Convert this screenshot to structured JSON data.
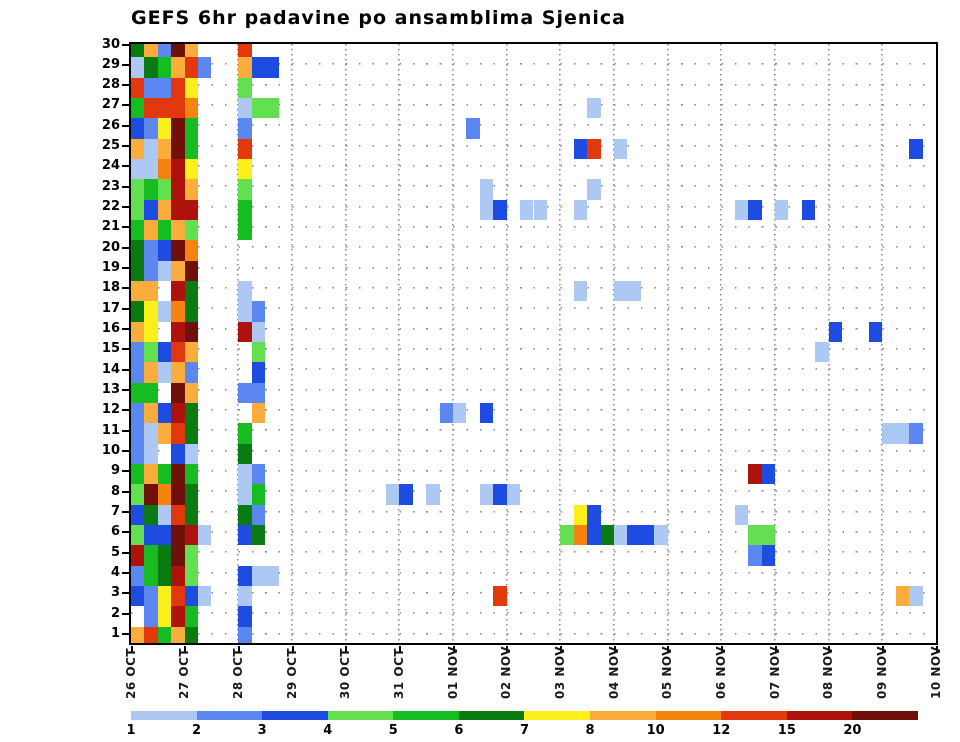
{
  "title": "GEFS 6hr padavine po ansamblima Sjenica",
  "chart_data": {
    "type": "heatmap",
    "title": "GEFS 6hr padavine po ansamblima Sjenica",
    "x_tick_labels": [
      "26 OCT",
      "27 OCT",
      "28 OCT",
      "29 OCT",
      "30 OCT",
      "31 OCT",
      "01 NOV",
      "02 NOV",
      "03 NOV",
      "04 NOV",
      "05 NOV",
      "06 NOV",
      "07 NOV",
      "08 NOV",
      "09 NOV",
      "10 NOV"
    ],
    "y_tick_labels": [
      30,
      29,
      28,
      27,
      26,
      25,
      24,
      23,
      22,
      21,
      20,
      19,
      18,
      17,
      16,
      15,
      14,
      13,
      12,
      11,
      10,
      9,
      8,
      7,
      6,
      5,
      4,
      3,
      2,
      1
    ],
    "columns_per_day": 4,
    "n_columns": 60,
    "n_rows": 30,
    "grid": true,
    "legend": {
      "position": "bottom",
      "values": [
        1,
        2,
        3,
        4,
        5,
        6,
        7,
        8,
        10,
        12,
        15,
        20
      ],
      "colors": [
        "#ADC9F3",
        "#5C87F0",
        "#1E4CE0",
        "#64DF52",
        "#16BC22",
        "#0A7A12",
        "#FBEF1C",
        "#FAAD3D",
        "#F5830F",
        "#E1380E",
        "#AD120C",
        "#70100B"
      ]
    },
    "color_key_hex": {
      "P": "#ADC9F3",
      "C": "#5C87F0",
      "B": "#1E4CE0",
      "LG": "#64DF52",
      "G": "#16BC22",
      "DG": "#0A7A12",
      "Y": "#FBEF1C",
      "O": "#FAAD3D",
      "DO": "#F5830F",
      "R": "#E1380E",
      "DR": "#AD120C",
      "M": "#70100B"
    },
    "color_key_range": {
      "P": "1-2",
      "C": "2-3",
      "B": "3-4",
      "LG": "4-5",
      "G": "5-6",
      "DG": "6-7",
      "Y": "7-8",
      "O": "8-10",
      "DO": "10-12",
      "R": "12-15",
      "DR": "15-20",
      "M": "20+"
    },
    "cells": {
      "30": [
        [
          1,
          "DG"
        ],
        [
          2,
          "O"
        ],
        [
          3,
          "C"
        ],
        [
          4,
          "M"
        ],
        [
          5,
          "O"
        ],
        [
          9,
          "R"
        ]
      ],
      "29": [
        [
          1,
          "P"
        ],
        [
          2,
          "DG"
        ],
        [
          3,
          "G"
        ],
        [
          4,
          "O"
        ],
        [
          5,
          "R"
        ],
        [
          6,
          "C"
        ],
        [
          9,
          "O"
        ],
        [
          10,
          "B"
        ],
        [
          11,
          "B"
        ]
      ],
      "28": [
        [
          1,
          "R"
        ],
        [
          2,
          "C"
        ],
        [
          3,
          "C"
        ],
        [
          4,
          "R"
        ],
        [
          5,
          "Y"
        ],
        [
          9,
          "LG"
        ]
      ],
      "27": [
        [
          1,
          "G"
        ],
        [
          2,
          "R"
        ],
        [
          3,
          "R"
        ],
        [
          4,
          "R"
        ],
        [
          5,
          "DO"
        ],
        [
          9,
          "P"
        ],
        [
          10,
          "LG"
        ],
        [
          11,
          "LG"
        ],
        [
          35,
          "P"
        ]
      ],
      "26": [
        [
          1,
          "B"
        ],
        [
          2,
          "C"
        ],
        [
          3,
          "Y"
        ],
        [
          4,
          "M"
        ],
        [
          5,
          "G"
        ],
        [
          9,
          "C"
        ],
        [
          26,
          "C"
        ]
      ],
      "25": [
        [
          1,
          "O"
        ],
        [
          2,
          "P"
        ],
        [
          3,
          "O"
        ],
        [
          4,
          "M"
        ],
        [
          5,
          "G"
        ],
        [
          9,
          "R"
        ],
        [
          34,
          "B"
        ],
        [
          35,
          "R"
        ],
        [
          37,
          "P"
        ],
        [
          59,
          "B"
        ]
      ],
      "24": [
        [
          1,
          "P"
        ],
        [
          2,
          "P"
        ],
        [
          3,
          "DO"
        ],
        [
          4,
          "DR"
        ],
        [
          5,
          "Y"
        ],
        [
          9,
          "Y"
        ]
      ],
      "23": [
        [
          1,
          "LG"
        ],
        [
          2,
          "G"
        ],
        [
          3,
          "LG"
        ],
        [
          4,
          "DR"
        ],
        [
          5,
          "O"
        ],
        [
          9,
          "LG"
        ],
        [
          27,
          "P"
        ],
        [
          35,
          "P"
        ]
      ],
      "22": [
        [
          1,
          "LG"
        ],
        [
          2,
          "B"
        ],
        [
          3,
          "O"
        ],
        [
          4,
          "DR"
        ],
        [
          5,
          "DR"
        ],
        [
          9,
          "G"
        ],
        [
          27,
          "P"
        ],
        [
          28,
          "B"
        ],
        [
          30,
          "P"
        ],
        [
          31,
          "P"
        ],
        [
          34,
          "P"
        ],
        [
          46,
          "P"
        ],
        [
          47,
          "B"
        ],
        [
          49,
          "P"
        ],
        [
          51,
          "B"
        ]
      ],
      "21": [
        [
          1,
          "G"
        ],
        [
          2,
          "O"
        ],
        [
          3,
          "G"
        ],
        [
          4,
          "O"
        ],
        [
          5,
          "LG"
        ],
        [
          9,
          "G"
        ]
      ],
      "20": [
        [
          1,
          "DG"
        ],
        [
          2,
          "C"
        ],
        [
          3,
          "B"
        ],
        [
          4,
          "M"
        ],
        [
          5,
          "DO"
        ]
      ],
      "19": [
        [
          1,
          "DG"
        ],
        [
          2,
          "C"
        ],
        [
          3,
          "P"
        ],
        [
          4,
          "O"
        ],
        [
          5,
          "M"
        ]
      ],
      "18": [
        [
          1,
          "O"
        ],
        [
          2,
          "O"
        ],
        [
          4,
          "DR"
        ],
        [
          5,
          "DG"
        ],
        [
          9,
          "P"
        ],
        [
          34,
          "P"
        ],
        [
          37,
          "P"
        ],
        [
          38,
          "P"
        ]
      ],
      "17": [
        [
          1,
          "DG"
        ],
        [
          2,
          "Y"
        ],
        [
          3,
          "P"
        ],
        [
          4,
          "DO"
        ],
        [
          5,
          "DG"
        ],
        [
          9,
          "P"
        ],
        [
          10,
          "C"
        ]
      ],
      "16": [
        [
          1,
          "O"
        ],
        [
          2,
          "Y"
        ],
        [
          4,
          "DR"
        ],
        [
          5,
          "M"
        ],
        [
          9,
          "DR"
        ],
        [
          10,
          "P"
        ],
        [
          53,
          "B"
        ],
        [
          56,
          "B"
        ]
      ],
      "15": [
        [
          1,
          "C"
        ],
        [
          2,
          "LG"
        ],
        [
          3,
          "B"
        ],
        [
          4,
          "R"
        ],
        [
          5,
          "O"
        ],
        [
          10,
          "LG"
        ],
        [
          52,
          "P"
        ]
      ],
      "14": [
        [
          1,
          "C"
        ],
        [
          2,
          "O"
        ],
        [
          3,
          "P"
        ],
        [
          4,
          "O"
        ],
        [
          5,
          "C"
        ],
        [
          10,
          "B"
        ]
      ],
      "13": [
        [
          1,
          "G"
        ],
        [
          2,
          "G"
        ],
        [
          4,
          "M"
        ],
        [
          5,
          "O"
        ],
        [
          9,
          "C"
        ],
        [
          10,
          "C"
        ]
      ],
      "12": [
        [
          1,
          "C"
        ],
        [
          2,
          "O"
        ],
        [
          3,
          "B"
        ],
        [
          4,
          "DR"
        ],
        [
          5,
          "DG"
        ],
        [
          10,
          "O"
        ],
        [
          24,
          "C"
        ],
        [
          25,
          "P"
        ],
        [
          27,
          "B"
        ]
      ],
      "11": [
        [
          1,
          "C"
        ],
        [
          2,
          "P"
        ],
        [
          3,
          "O"
        ],
        [
          4,
          "R"
        ],
        [
          5,
          "DG"
        ],
        [
          9,
          "G"
        ],
        [
          57,
          "P"
        ],
        [
          58,
          "P"
        ],
        [
          59,
          "C"
        ]
      ],
      "10": [
        [
          1,
          "C"
        ],
        [
          2,
          "P"
        ],
        [
          4,
          "B"
        ],
        [
          5,
          "P"
        ],
        [
          9,
          "DG"
        ]
      ],
      "9": [
        [
          1,
          "G"
        ],
        [
          2,
          "O"
        ],
        [
          3,
          "G"
        ],
        [
          4,
          "M"
        ],
        [
          5,
          "G"
        ],
        [
          9,
          "P"
        ],
        [
          10,
          "C"
        ],
        [
          47,
          "DR"
        ],
        [
          48,
          "B"
        ]
      ],
      "8": [
        [
          1,
          "LG"
        ],
        [
          2,
          "M"
        ],
        [
          3,
          "DO"
        ],
        [
          4,
          "M"
        ],
        [
          5,
          "DG"
        ],
        [
          9,
          "P"
        ],
        [
          10,
          "G"
        ],
        [
          20,
          "P"
        ],
        [
          21,
          "B"
        ],
        [
          23,
          "P"
        ],
        [
          27,
          "P"
        ],
        [
          28,
          "B"
        ],
        [
          29,
          "P"
        ]
      ],
      "7": [
        [
          1,
          "B"
        ],
        [
          2,
          "DG"
        ],
        [
          3,
          "P"
        ],
        [
          4,
          "R"
        ],
        [
          5,
          "DG"
        ],
        [
          9,
          "DG"
        ],
        [
          10,
          "C"
        ],
        [
          34,
          "Y"
        ],
        [
          35,
          "B"
        ],
        [
          46,
          "P"
        ]
      ],
      "6": [
        [
          1,
          "LG"
        ],
        [
          2,
          "B"
        ],
        [
          3,
          "B"
        ],
        [
          4,
          "M"
        ],
        [
          5,
          "DR"
        ],
        [
          6,
          "P"
        ],
        [
          9,
          "B"
        ],
        [
          10,
          "DG"
        ],
        [
          33,
          "LG"
        ],
        [
          34,
          "DO"
        ],
        [
          35,
          "B"
        ],
        [
          36,
          "DG"
        ],
        [
          37,
          "P"
        ],
        [
          38,
          "B"
        ],
        [
          39,
          "B"
        ],
        [
          40,
          "P"
        ],
        [
          47,
          "LG"
        ],
        [
          48,
          "LG"
        ]
      ],
      "5": [
        [
          1,
          "DR"
        ],
        [
          2,
          "G"
        ],
        [
          3,
          "DG"
        ],
        [
          4,
          "M"
        ],
        [
          5,
          "LG"
        ],
        [
          47,
          "C"
        ],
        [
          48,
          "B"
        ]
      ],
      "4": [
        [
          1,
          "C"
        ],
        [
          2,
          "G"
        ],
        [
          3,
          "DG"
        ],
        [
          4,
          "DR"
        ],
        [
          5,
          "LG"
        ],
        [
          9,
          "B"
        ],
        [
          10,
          "P"
        ],
        [
          11,
          "P"
        ]
      ],
      "3": [
        [
          1,
          "B"
        ],
        [
          2,
          "C"
        ],
        [
          3,
          "Y"
        ],
        [
          4,
          "R"
        ],
        [
          5,
          "B"
        ],
        [
          6,
          "P"
        ],
        [
          9,
          "P"
        ],
        [
          28,
          "R"
        ],
        [
          58,
          "O"
        ],
        [
          59,
          "P"
        ]
      ],
      "2": [
        [
          2,
          "C"
        ],
        [
          3,
          "Y"
        ],
        [
          4,
          "DR"
        ],
        [
          5,
          "G"
        ],
        [
          9,
          "B"
        ]
      ],
      "1": [
        [
          1,
          "O"
        ],
        [
          2,
          "R"
        ],
        [
          3,
          "G"
        ],
        [
          4,
          "O"
        ],
        [
          5,
          "DG"
        ],
        [
          9,
          "C"
        ]
      ]
    }
  }
}
